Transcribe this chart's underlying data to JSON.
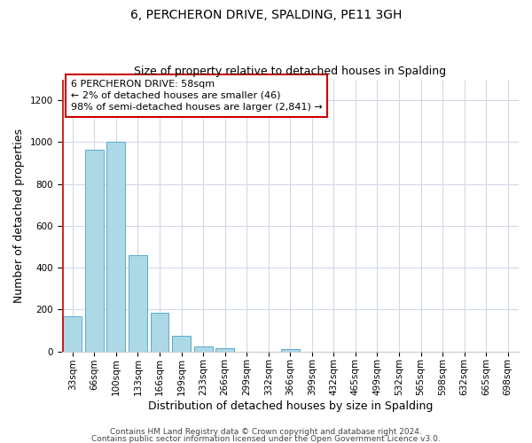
{
  "title": "6, PERCHERON DRIVE, SPALDING, PE11 3GH",
  "subtitle": "Size of property relative to detached houses in Spalding",
  "xlabel": "Distribution of detached houses by size in Spalding",
  "ylabel": "Number of detached properties",
  "bar_labels": [
    "33sqm",
    "66sqm",
    "100sqm",
    "133sqm",
    "166sqm",
    "199sqm",
    "233sqm",
    "266sqm",
    "299sqm",
    "332sqm",
    "366sqm",
    "399sqm",
    "432sqm",
    "465sqm",
    "499sqm",
    "532sqm",
    "565sqm",
    "598sqm",
    "632sqm",
    "665sqm",
    "698sqm"
  ],
  "bar_values": [
    170,
    965,
    1000,
    460,
    185,
    75,
    25,
    15,
    0,
    0,
    10,
    0,
    0,
    0,
    0,
    0,
    0,
    0,
    0,
    0,
    0
  ],
  "bar_color": "#add8e6",
  "bar_edge_color": "#5aabcc",
  "ylim": [
    0,
    1300
  ],
  "yticks": [
    0,
    200,
    400,
    600,
    800,
    1000,
    1200
  ],
  "annotation_box_text": "6 PERCHERON DRIVE: 58sqm\n← 2% of detached houses are smaller (46)\n98% of semi-detached houses are larger (2,841) →",
  "annotation_box_color": "#ffffff",
  "annotation_box_edge_color": "#cc0000",
  "marker_line_color": "#cc0000",
  "footer_line1": "Contains HM Land Registry data © Crown copyright and database right 2024.",
  "footer_line2": "Contains public sector information licensed under the Open Government Licence v3.0.",
  "bg_color": "#ffffff",
  "grid_color": "#d0d8e8",
  "title_fontsize": 10,
  "subtitle_fontsize": 9,
  "axis_label_fontsize": 9,
  "tick_fontsize": 7.5,
  "annotation_fontsize": 8,
  "footer_fontsize": 6.5
}
